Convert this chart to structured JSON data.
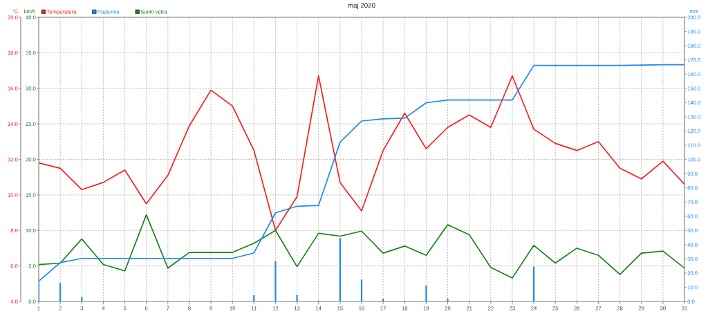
{
  "chart_data": {
    "type": "line",
    "title": "maj 2020",
    "x": [
      1,
      2,
      3,
      4,
      5,
      6,
      7,
      8,
      9,
      10,
      11,
      12,
      13,
      14,
      15,
      16,
      17,
      18,
      19,
      20,
      21,
      22,
      23,
      24,
      25,
      26,
      27,
      28,
      29,
      30,
      31
    ],
    "xlim": [
      1,
      31
    ],
    "xticks": [
      1,
      2,
      3,
      4,
      5,
      6,
      7,
      8,
      9,
      10,
      11,
      12,
      13,
      14,
      15,
      16,
      17,
      18,
      19,
      20,
      21,
      22,
      23,
      24,
      25,
      26,
      27,
      28,
      29,
      30,
      31
    ],
    "ylabel": "°C",
    "y2label": "km/h",
    "y3label": "mm",
    "ylim": [
      4,
      20
    ],
    "yticks": [
      {
        "value": 4,
        "label": "4.0"
      },
      {
        "value": 6,
        "label": "6.0"
      },
      {
        "value": 8,
        "label": "8.0"
      },
      {
        "value": 10,
        "label": "10.0"
      },
      {
        "value": 12,
        "label": "12.0"
      },
      {
        "value": 14,
        "label": "14.0"
      },
      {
        "value": 16,
        "label": "16.0"
      },
      {
        "value": 18,
        "label": "18.0"
      },
      {
        "value": 20,
        "label": "20.0"
      }
    ],
    "y2lim": [
      0,
      40
    ],
    "y2ticks": [
      {
        "value": 0,
        "label": "0.0"
      },
      {
        "value": 5,
        "label": "5.0"
      },
      {
        "value": 10,
        "label": "10.0"
      },
      {
        "value": 15,
        "label": "15.0"
      },
      {
        "value": 20,
        "label": "20.0"
      },
      {
        "value": 25,
        "label": "25.0"
      },
      {
        "value": 30,
        "label": "30.0"
      },
      {
        "value": 35,
        "label": "35.0"
      },
      {
        "value": 40,
        "label": "40.0"
      }
    ],
    "y3lim": [
      0,
      200
    ],
    "y3ticks": [
      {
        "value": 0,
        "label": "0.0"
      },
      {
        "value": 10,
        "label": "10.0"
      },
      {
        "value": 20,
        "label": "20.0"
      },
      {
        "value": 30,
        "label": "30.0"
      },
      {
        "value": 40,
        "label": "40.0"
      },
      {
        "value": 50,
        "label": "50.0"
      },
      {
        "value": 60,
        "label": "60.0"
      },
      {
        "value": 70,
        "label": "70.0"
      },
      {
        "value": 80,
        "label": "80.0"
      },
      {
        "value": 90,
        "label": "90.0"
      },
      {
        "value": 100,
        "label": "100.0"
      },
      {
        "value": 110,
        "label": "110.0"
      },
      {
        "value": 120,
        "label": "120.0"
      },
      {
        "value": 130,
        "label": "130.0"
      },
      {
        "value": 140,
        "label": "140.0"
      },
      {
        "value": 150,
        "label": "150.0"
      },
      {
        "value": 160,
        "label": "160.0"
      },
      {
        "value": 170,
        "label": "170.0"
      },
      {
        "value": 180,
        "label": "180.0"
      },
      {
        "value": 190,
        "label": "190.0"
      },
      {
        "value": 200,
        "label": "200.0"
      }
    ],
    "series": [
      {
        "type": "bar",
        "color": "#1e88f0",
        "axis": "y3",
        "values": [
          14.3,
          13.1,
          3.3,
          null,
          null,
          null,
          null,
          null,
          null,
          null,
          4.4,
          28.2,
          4.7,
          0.6,
          44.6,
          15.4,
          1.8,
          0.5,
          11.2,
          2.1,
          null,
          null,
          0.3,
          24.5,
          null,
          null,
          null,
          null,
          null,
          null,
          null
        ]
      },
      {
        "name": "Temperatura",
        "color": "#ff1a1a",
        "values": [
          11.8,
          11.5,
          10.3,
          10.7,
          11.4,
          9.5,
          11.1,
          13.9,
          15.9,
          15.0,
          12.5,
          8.0,
          9.9,
          16.7,
          10.7,
          9.1,
          12.5,
          14.6,
          12.6,
          13.8,
          14.5,
          13.8,
          16.7,
          13.7,
          12.9,
          12.5,
          13.0,
          11.5,
          10.9,
          11.9,
          10.6
        ]
      },
      {
        "name": "Padavine",
        "color": "#1e88f0",
        "axis": "y3",
        "values": [
          14.3,
          27.3,
          30.3,
          30.3,
          30.3,
          30.3,
          30.3,
          30.3,
          30.3,
          30.3,
          34.2,
          62.4,
          67.0,
          67.6,
          112.1,
          127.0,
          128.5,
          129.0,
          139.8,
          141.8,
          141.8,
          141.8,
          141.8,
          166.1,
          166.1,
          166.1,
          166.1,
          166.1,
          166.4,
          166.6,
          166.6
        ]
      },
      {
        "name": "Sunki vetra",
        "color": "#138413",
        "axis": "y2",
        "values": [
          5.2,
          5.4,
          8.8,
          5.2,
          4.3,
          12.2,
          4.7,
          6.9,
          6.9,
          6.9,
          8.2,
          10.0,
          4.9,
          9.6,
          9.2,
          9.9,
          6.8,
          7.8,
          6.5,
          10.8,
          9.4,
          4.8,
          3.3,
          7.9,
          5.4,
          7.5,
          6.5,
          3.8,
          6.8,
          7.1,
          4.7
        ]
      }
    ],
    "grid": true,
    "legend": "top left",
    "line_style": "solid"
  }
}
